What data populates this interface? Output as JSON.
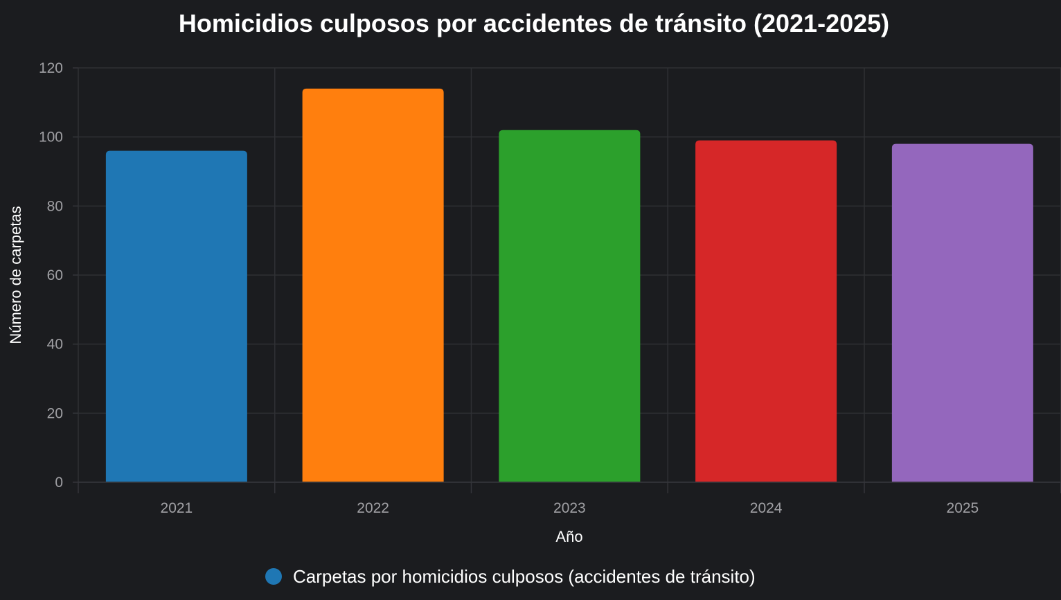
{
  "chart_data": {
    "type": "bar",
    "title": "Homicidios culposos por accidentes de tránsito (2021-2025)",
    "xlabel": "Año",
    "ylabel": "Número de carpetas",
    "categories": [
      "2021",
      "2022",
      "2023",
      "2024",
      "2025"
    ],
    "series": [
      {
        "name": "Carpetas por homicidios culposos (accidentes de tránsito)",
        "values": [
          96,
          114,
          102,
          99,
          98
        ],
        "colors": [
          "#1f77b4",
          "#ff7f0e",
          "#2ca02c",
          "#d62728",
          "#9467bd"
        ]
      }
    ],
    "ylim": [
      0,
      120
    ],
    "yticks": [
      "0",
      "20",
      "40",
      "60",
      "80",
      "100",
      "120"
    ],
    "grid": true,
    "legend_position": "bottom",
    "background": "#1b1c1f"
  }
}
